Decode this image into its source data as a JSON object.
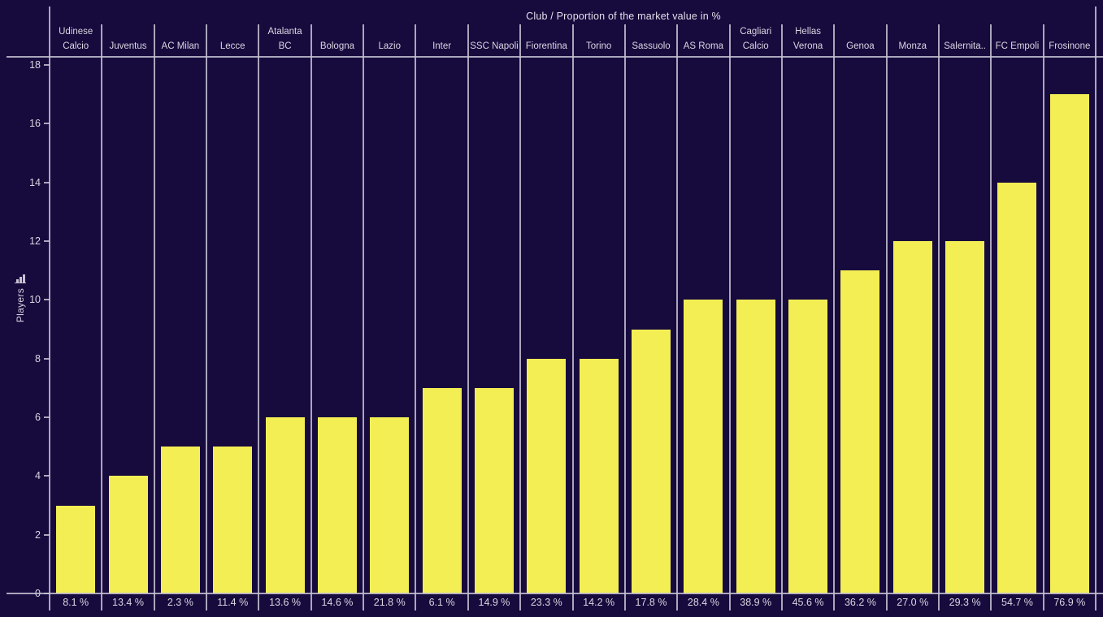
{
  "chart": {
    "title": "Club / Proportion of the market value in %",
    "y_axis": {
      "label": "Players",
      "field_icon": "bar-chart-icon"
    }
  },
  "chart_data": {
    "type": "bar",
    "title": "Club / Proportion of the market value in %",
    "xlabel": "Club / Proportion of the market value in %",
    "ylabel": "Players",
    "ylim": [
      0,
      18
    ],
    "y_ticks": [
      0,
      2,
      4,
      6,
      8,
      10,
      12,
      14,
      16,
      18
    ],
    "grid": "column separators only, no horizontal gridlines",
    "legend": "none",
    "categories": [
      "Udinese Calcio",
      "Juventus",
      "AC Milan",
      "Lecce",
      "Atalanta BC",
      "Bologna",
      "Lazio",
      "Inter",
      "SSC Napoli",
      "Fiorentina",
      "Torino",
      "Sassuolo",
      "AS Roma",
      "Cagliari Calcio",
      "Hellas Verona",
      "Genoa",
      "Monza",
      "Salernita..",
      "FC Empoli",
      "Frosinone"
    ],
    "header_lines": [
      [
        "Udinese",
        "Calcio"
      ],
      [
        "Juventus"
      ],
      [
        "AC Milan"
      ],
      [
        "Lecce"
      ],
      [
        "Atalanta",
        "BC"
      ],
      [
        "Bologna"
      ],
      [
        "Lazio"
      ],
      [
        "Inter"
      ],
      [
        "SSC Napoli"
      ],
      [
        "Fiorentina"
      ],
      [
        "Torino"
      ],
      [
        "Sassuolo"
      ],
      [
        "AS Roma"
      ],
      [
        "Cagliari",
        "Calcio"
      ],
      [
        "Hellas",
        "Verona"
      ],
      [
        "Genoa"
      ],
      [
        "Monza"
      ],
      [
        "Salernita.."
      ],
      [
        "FC Empoli"
      ],
      [
        "Frosinone"
      ]
    ],
    "series": [
      {
        "name": "Players",
        "values": [
          3,
          4,
          5,
          5,
          6,
          6,
          6,
          7,
          7,
          8,
          8,
          9,
          10,
          10,
          10,
          11,
          12,
          12,
          14,
          17
        ]
      }
    ],
    "market_value_pct_labels": [
      "8.1 %",
      "13.4 %",
      "2.3 %",
      "11.4 %",
      "13.6 %",
      "14.6 %",
      "21.8 %",
      "6.1 %",
      "14.9 %",
      "23.3 %",
      "14.2 %",
      "17.8 %",
      "28.4 %",
      "38.9 %",
      "45.6 %",
      "36.2 %",
      "27.0 %",
      "29.3 %",
      "54.7 %",
      "76.9 %"
    ],
    "colors": {
      "background": "#170a3d",
      "bar": "#f4ee55",
      "line": "#c6c2d2",
      "text": "#dcd9e4"
    }
  }
}
